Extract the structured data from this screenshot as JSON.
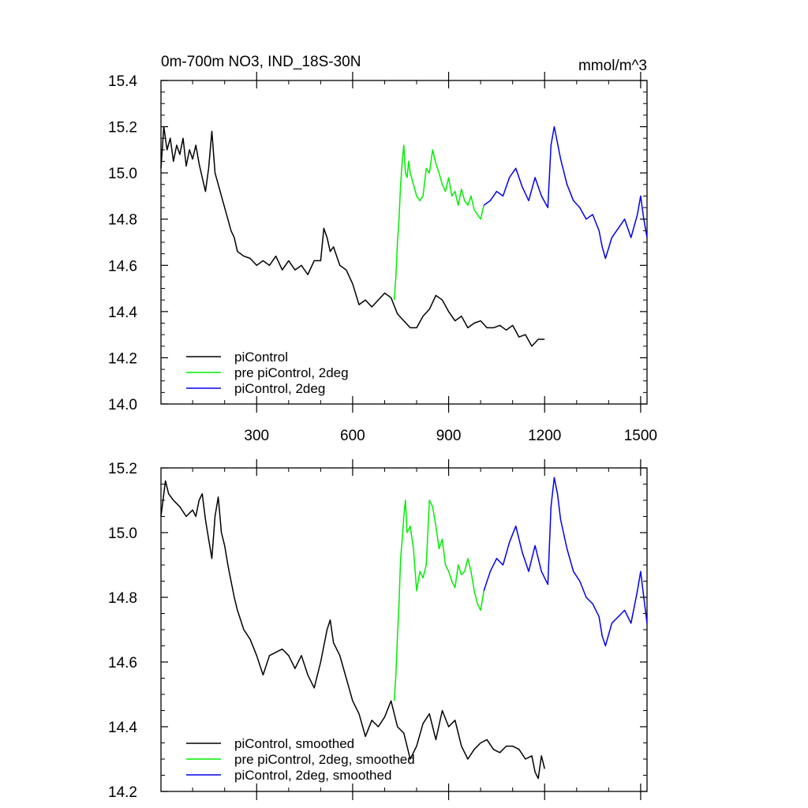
{
  "chart_data": [
    {
      "type": "line",
      "title": "0m-700m NO3, IND_18S-30N",
      "units": "mmol/m^3",
      "xlim": [
        1,
        1520
      ],
      "ylim": [
        14.0,
        15.4
      ],
      "xticks": [
        300,
        600,
        900,
        1200,
        1500
      ],
      "yticks": [
        14.0,
        14.2,
        14.4,
        14.6,
        14.8,
        15.0,
        15.2,
        15.4
      ],
      "ytick_labels": [
        "14.0",
        "14.2",
        "14.4",
        "14.6",
        "14.8",
        "15.0",
        "15.2",
        "15.4"
      ],
      "legend_position": "bottom-left",
      "series": [
        {
          "name": "piControl",
          "color": "#000000",
          "x": [
            1,
            10,
            20,
            30,
            40,
            50,
            60,
            70,
            80,
            90,
            100,
            110,
            120,
            130,
            140,
            150,
            160,
            170,
            180,
            190,
            200,
            210,
            220,
            230,
            240,
            260,
            280,
            300,
            320,
            340,
            360,
            380,
            400,
            420,
            440,
            460,
            480,
            500,
            510,
            520,
            530,
            540,
            560,
            580,
            600,
            620,
            640,
            660,
            680,
            700,
            720,
            740,
            760,
            780,
            800,
            820,
            840,
            860,
            880,
            900,
            920,
            940,
            960,
            980,
            1000,
            1020,
            1040,
            1060,
            1080,
            1100,
            1120,
            1140,
            1160,
            1180,
            1200
          ],
          "y": [
            15.02,
            15.2,
            15.1,
            15.15,
            15.05,
            15.12,
            15.08,
            15.15,
            15.03,
            15.1,
            15.06,
            15.12,
            15.04,
            14.98,
            14.92,
            15.02,
            15.18,
            15.0,
            14.95,
            14.9,
            14.85,
            14.8,
            14.75,
            14.72,
            14.66,
            14.64,
            14.63,
            14.6,
            14.62,
            14.6,
            14.64,
            14.58,
            14.62,
            14.58,
            14.6,
            14.56,
            14.62,
            14.62,
            14.76,
            14.72,
            14.66,
            14.68,
            14.6,
            14.58,
            14.52,
            14.43,
            14.45,
            14.42,
            14.45,
            14.48,
            14.46,
            14.39,
            14.36,
            14.33,
            14.33,
            14.38,
            14.41,
            14.47,
            14.45,
            14.4,
            14.36,
            14.38,
            14.33,
            14.35,
            14.36,
            14.33,
            14.33,
            14.34,
            14.32,
            14.34,
            14.29,
            14.3,
            14.25,
            14.28,
            14.28
          ]
        },
        {
          "name": "pre piControl, 2deg",
          "color": "#00ee00",
          "x": [
            730,
            735,
            740,
            745,
            750,
            755,
            760,
            765,
            770,
            775,
            780,
            790,
            800,
            810,
            820,
            830,
            840,
            850,
            860,
            870,
            880,
            890,
            900,
            910,
            920,
            930,
            940,
            950,
            960,
            970,
            980,
            990,
            1000,
            1010
          ],
          "y": [
            14.45,
            14.55,
            14.7,
            14.8,
            14.95,
            15.05,
            15.12,
            15.0,
            14.98,
            15.05,
            15.0,
            14.95,
            14.9,
            14.88,
            14.9,
            15.02,
            15.0,
            15.1,
            15.04,
            15.0,
            14.95,
            14.92,
            14.98,
            14.9,
            14.92,
            14.86,
            14.93,
            14.88,
            14.86,
            14.9,
            14.84,
            14.82,
            14.8,
            14.86
          ]
        },
        {
          "name": "piControl, 2deg",
          "color": "#0000ee",
          "x": [
            1010,
            1030,
            1050,
            1070,
            1090,
            1110,
            1130,
            1150,
            1170,
            1190,
            1210,
            1220,
            1230,
            1240,
            1250,
            1270,
            1290,
            1310,
            1330,
            1350,
            1370,
            1380,
            1390,
            1410,
            1430,
            1450,
            1470,
            1490,
            1500,
            1510,
            1520
          ],
          "y": [
            14.86,
            14.88,
            14.92,
            14.9,
            14.98,
            15.02,
            14.94,
            14.88,
            14.98,
            14.9,
            14.85,
            15.12,
            15.2,
            15.13,
            15.06,
            14.95,
            14.88,
            14.85,
            14.8,
            14.82,
            14.75,
            14.68,
            14.63,
            14.72,
            14.76,
            14.8,
            14.72,
            14.82,
            14.9,
            14.8,
            14.72
          ]
        }
      ]
    },
    {
      "type": "line",
      "xlim": [
        1,
        1520
      ],
      "ylim": [
        14.2,
        15.2
      ],
      "yticks": [
        14.2,
        14.4,
        14.6,
        14.8,
        15.0,
        15.2
      ],
      "ytick_labels": [
        "14.2",
        "14.4",
        "14.6",
        "14.8",
        "15.0",
        "15.2"
      ],
      "legend_position": "bottom-left",
      "series": [
        {
          "name": "piControl, smoothed",
          "color": "#000000",
          "x": [
            1,
            15,
            25,
            40,
            60,
            80,
            100,
            110,
            120,
            130,
            140,
            150,
            160,
            170,
            180,
            190,
            200,
            210,
            220,
            230,
            240,
            260,
            280,
            300,
            320,
            340,
            360,
            380,
            400,
            420,
            440,
            460,
            480,
            500,
            520,
            530,
            540,
            560,
            580,
            600,
            620,
            640,
            660,
            680,
            700,
            720,
            740,
            760,
            780,
            800,
            820,
            840,
            860,
            880,
            900,
            920,
            940,
            960,
            980,
            1000,
            1020,
            1040,
            1060,
            1080,
            1100,
            1120,
            1140,
            1160,
            1170,
            1180,
            1190,
            1200
          ],
          "y": [
            15.05,
            15.16,
            15.12,
            15.1,
            15.08,
            15.05,
            15.07,
            15.05,
            15.1,
            15.12,
            15.04,
            14.98,
            14.92,
            15.05,
            15.11,
            15.0,
            14.96,
            14.9,
            14.85,
            14.8,
            14.76,
            14.7,
            14.67,
            14.62,
            14.56,
            14.62,
            14.63,
            14.64,
            14.62,
            14.58,
            14.62,
            14.56,
            14.52,
            14.6,
            14.7,
            14.73,
            14.66,
            14.62,
            14.55,
            14.48,
            14.44,
            14.37,
            14.42,
            14.4,
            14.43,
            14.48,
            14.4,
            14.38,
            14.3,
            14.34,
            14.41,
            14.44,
            14.36,
            14.45,
            14.4,
            14.42,
            14.34,
            14.3,
            14.33,
            14.35,
            14.36,
            14.33,
            14.32,
            14.34,
            14.34,
            14.33,
            14.3,
            14.31,
            14.26,
            14.24,
            14.31,
            14.27
          ]
        },
        {
          "name": "pre piControl, 2deg, smoothed",
          "color": "#00ee00",
          "x": [
            730,
            735,
            740,
            745,
            750,
            755,
            760,
            765,
            770,
            780,
            790,
            800,
            810,
            820,
            830,
            840,
            850,
            860,
            870,
            880,
            890,
            900,
            910,
            920,
            930,
            940,
            950,
            960,
            970,
            980,
            990,
            1000,
            1010
          ],
          "y": [
            14.48,
            14.56,
            14.68,
            14.78,
            14.92,
            14.98,
            15.05,
            15.1,
            15.0,
            15.02,
            14.95,
            14.82,
            14.88,
            14.86,
            14.9,
            15.1,
            15.08,
            15.02,
            14.95,
            14.98,
            14.9,
            14.88,
            14.85,
            14.83,
            14.9,
            14.87,
            14.88,
            14.92,
            14.88,
            14.82,
            14.78,
            14.76,
            14.82
          ]
        },
        {
          "name": "piControl, 2deg, smoothed",
          "color": "#0000ee",
          "x": [
            1010,
            1030,
            1050,
            1070,
            1090,
            1110,
            1130,
            1150,
            1170,
            1190,
            1210,
            1220,
            1230,
            1240,
            1250,
            1270,
            1290,
            1310,
            1330,
            1350,
            1370,
            1380,
            1390,
            1410,
            1430,
            1450,
            1470,
            1490,
            1500,
            1510,
            1520
          ],
          "y": [
            14.82,
            14.88,
            14.92,
            14.9,
            14.97,
            15.02,
            14.94,
            14.88,
            14.96,
            14.88,
            14.84,
            15.08,
            15.17,
            15.12,
            15.04,
            14.95,
            14.88,
            14.85,
            14.8,
            14.78,
            14.74,
            14.68,
            14.65,
            14.72,
            14.74,
            14.76,
            14.72,
            14.82,
            14.88,
            14.8,
            14.72
          ]
        }
      ]
    }
  ]
}
